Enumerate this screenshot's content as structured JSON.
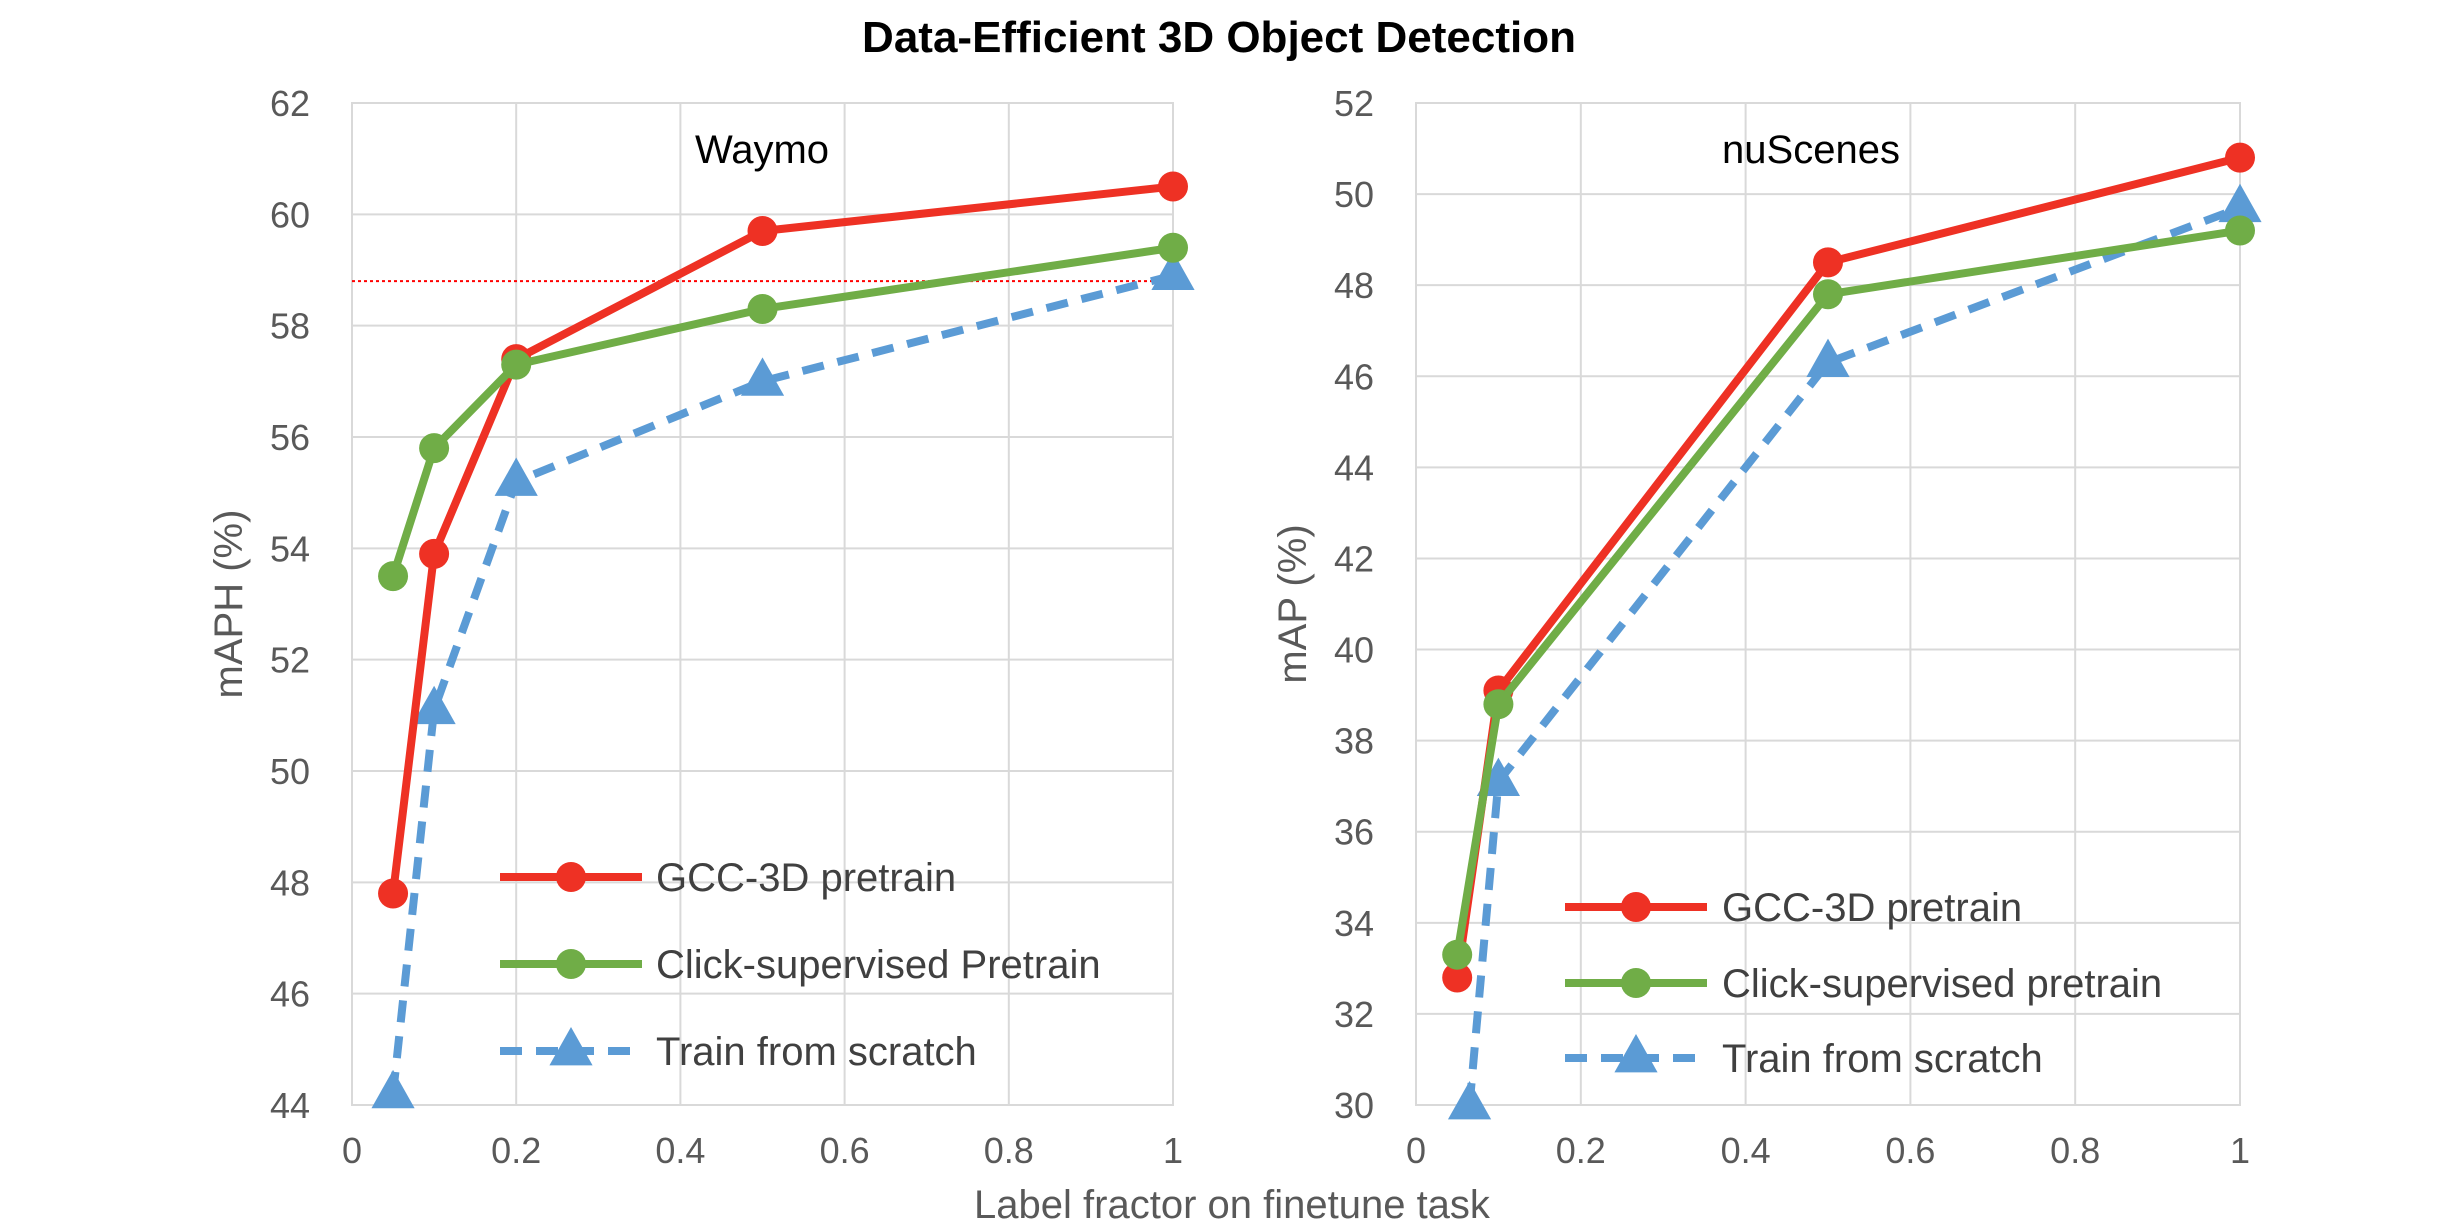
{
  "chart_data": {
    "title": "Data-Efficient 3D Object Detection",
    "xlabel": "Label fractor on finetune task",
    "panels": [
      {
        "type": "line",
        "label": "Waymo",
        "ylabel": "mAPH (%)",
        "xlim": [
          0,
          1
        ],
        "ylim": [
          44,
          62
        ],
        "x_ticks": [
          "0",
          "0.2",
          "0.4",
          "0.6",
          "0.8",
          "1"
        ],
        "y_ticks": [
          "44",
          "46",
          "48",
          "50",
          "52",
          "54",
          "56",
          "58",
          "60",
          "62"
        ],
        "reference_line": {
          "y": 58.8,
          "color": "#ff0000",
          "style": "dotted"
        },
        "legend_position": "bottom-right",
        "series": [
          {
            "name": "GCC-3D pretrain",
            "color": "#ee3124",
            "marker": "circle",
            "dash": "solid",
            "x": [
              0.05,
              0.1,
              0.2,
              0.5,
              1.0
            ],
            "y": [
              47.8,
              53.9,
              57.4,
              59.7,
              60.5
            ]
          },
          {
            "name": "Click-supervised Pretrain",
            "color": "#70ad47",
            "marker": "circle",
            "dash": "solid",
            "x": [
              0.05,
              0.1,
              0.2,
              0.5,
              1.0
            ],
            "y": [
              53.5,
              55.8,
              57.3,
              58.3,
              59.4
            ]
          },
          {
            "name": "Train from scratch",
            "color": "#5b9bd5",
            "marker": "triangle",
            "dash": "dashed",
            "x": [
              0.05,
              0.1,
              0.2,
              0.5,
              1.0
            ],
            "y": [
              44.2,
              51.1,
              55.2,
              57.0,
              58.9
            ]
          }
        ]
      },
      {
        "type": "line",
        "label": "nuScenes",
        "ylabel": "mAP (%)",
        "xlim": [
          0,
          1
        ],
        "ylim": [
          30,
          52
        ],
        "x_ticks": [
          "0",
          "0.2",
          "0.4",
          "0.6",
          "0.8",
          "1"
        ],
        "y_ticks": [
          "30",
          "32",
          "34",
          "36",
          "38",
          "40",
          "42",
          "44",
          "46",
          "48",
          "50",
          "52"
        ],
        "legend_position": "bottom-right",
        "series": [
          {
            "name": "GCC-3D pretrain",
            "color": "#ee3124",
            "marker": "circle",
            "dash": "solid",
            "x": [
              0.05,
              0.1,
              0.5,
              1.0
            ],
            "y": [
              32.8,
              39.1,
              48.5,
              50.8
            ]
          },
          {
            "name": "Click-supervised pretrain",
            "color": "#70ad47",
            "marker": "circle",
            "dash": "solid",
            "x": [
              0.05,
              0.1,
              0.5,
              1.0
            ],
            "y": [
              33.3,
              38.8,
              47.8,
              49.2
            ]
          },
          {
            "name": "Train from scratch",
            "color": "#5b9bd5",
            "marker": "triangle",
            "dash": "dashed",
            "x": [
              0.065,
              0.1,
              0.5,
              1.0
            ],
            "y": [
              30.0,
              37.1,
              46.3,
              49.7
            ]
          }
        ]
      }
    ]
  }
}
